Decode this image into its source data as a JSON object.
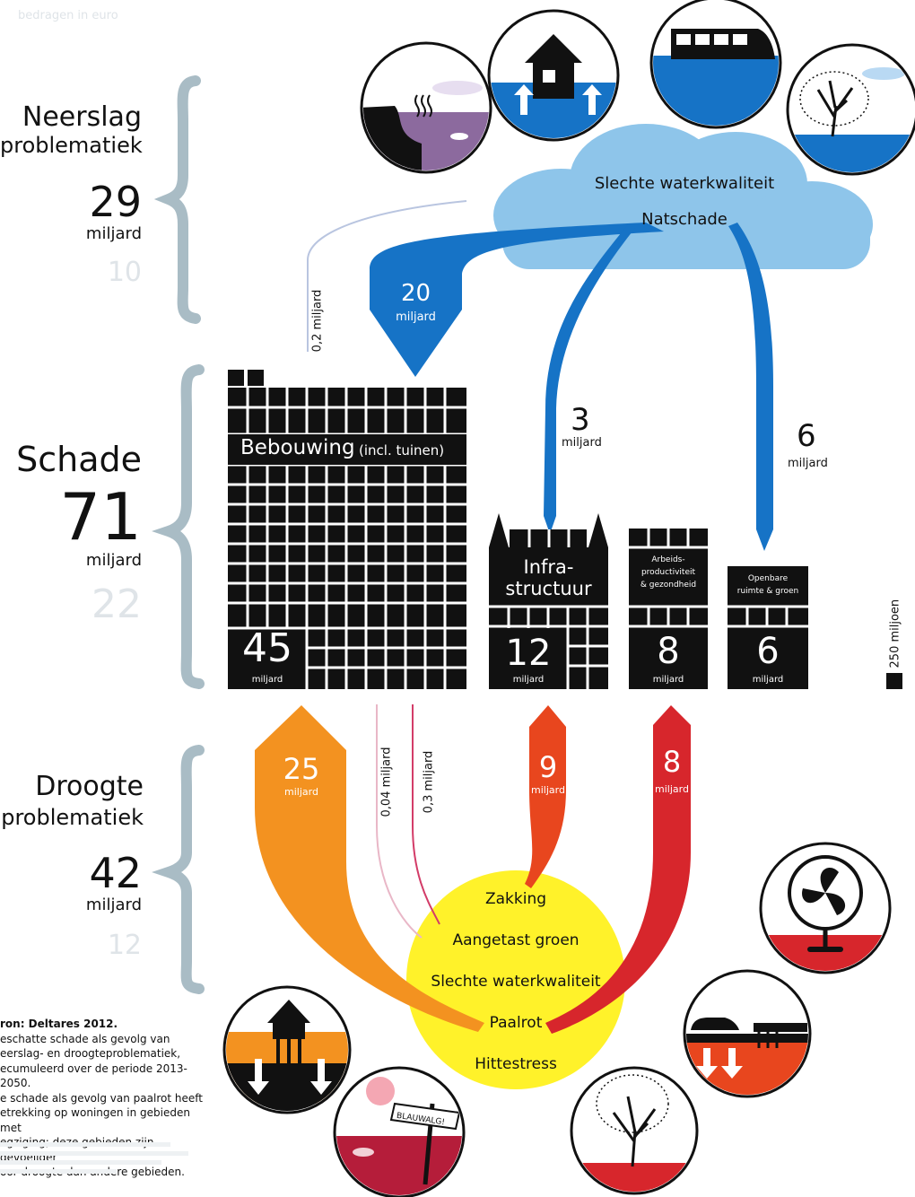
{
  "header": {
    "unit_note": "bedragen in euro"
  },
  "neerslag": {
    "title_line1": "Neerslag",
    "title_line2": "problematiek",
    "total": "29",
    "total_unit": "miljard",
    "faint_number": "10"
  },
  "schade": {
    "title": "Schade",
    "total": "71",
    "total_unit": "miljard",
    "faint_number": "22"
  },
  "droogte": {
    "title_line1": "Droogte",
    "title_line2": "problematiek",
    "total": "42",
    "total_unit": "miljard",
    "faint_number": "12"
  },
  "cloud": {
    "line1": "Slechte waterkwaliteit",
    "line2": "Natschade"
  },
  "flows_top": [
    {
      "value": "20",
      "unit": "miljard"
    },
    {
      "value": "0,2 miljard"
    },
    {
      "value": "3",
      "unit": "miljard"
    },
    {
      "value": "6",
      "unit": "miljard"
    }
  ],
  "blocks": {
    "bebouwing": {
      "label": "Bebouwing",
      "sublabel": "(incl. tuinen)",
      "value": "45",
      "unit": "miljard"
    },
    "infrastructuur": {
      "label_line1": "Infra-",
      "label_line2": "structuur",
      "value": "12",
      "unit": "miljard"
    },
    "arbeid": {
      "label_line1": "Arbeids-",
      "label_line2": "productiviteit",
      "label_line3": "& gezondheid",
      "value": "8",
      "unit": "miljard"
    },
    "openbare": {
      "label_line1": "Openbare",
      "label_line2": "ruimte & groen",
      "value": "6",
      "unit": "miljard"
    }
  },
  "legend": {
    "text": "= 250 miljoen"
  },
  "flows_bottom": [
    {
      "value": "25",
      "unit": "miljard"
    },
    {
      "value": "0,04 miljard"
    },
    {
      "value": "0,3 miljard"
    },
    {
      "value": "9",
      "unit": "miljard"
    },
    {
      "value": "8",
      "unit": "miljard"
    }
  ],
  "sun": {
    "items": [
      "Zakking",
      "Aangetast groen",
      "Slechte waterkwaliteit",
      "Paalrot",
      "Hittestress"
    ]
  },
  "source": {
    "lines": [
      "ron: Deltares 2012.",
      "eschatte schade als gevolg van",
      "eerslag- en droogteproblematiek,",
      "ecumuleerd over de periode 2013-2050.",
      "e schade als gevolg van paalrot heeft",
      "etrekking op woningen in gebieden met",
      "egziging; deze gebieden zijn gevoeliger",
      "oor droogte dan andere gebieden."
    ]
  },
  "signpost": {
    "text": "BLAUWALG!"
  },
  "colors": {
    "brace": "#a9bcc5",
    "cloud": "#8ec5ea",
    "blue": "#1673c6",
    "orange": "#f39220",
    "red_orange": "#e8461e",
    "red": "#d7262c",
    "yellow": "#fff22a",
    "purple": "#8c6a9e",
    "black": "#111111"
  }
}
